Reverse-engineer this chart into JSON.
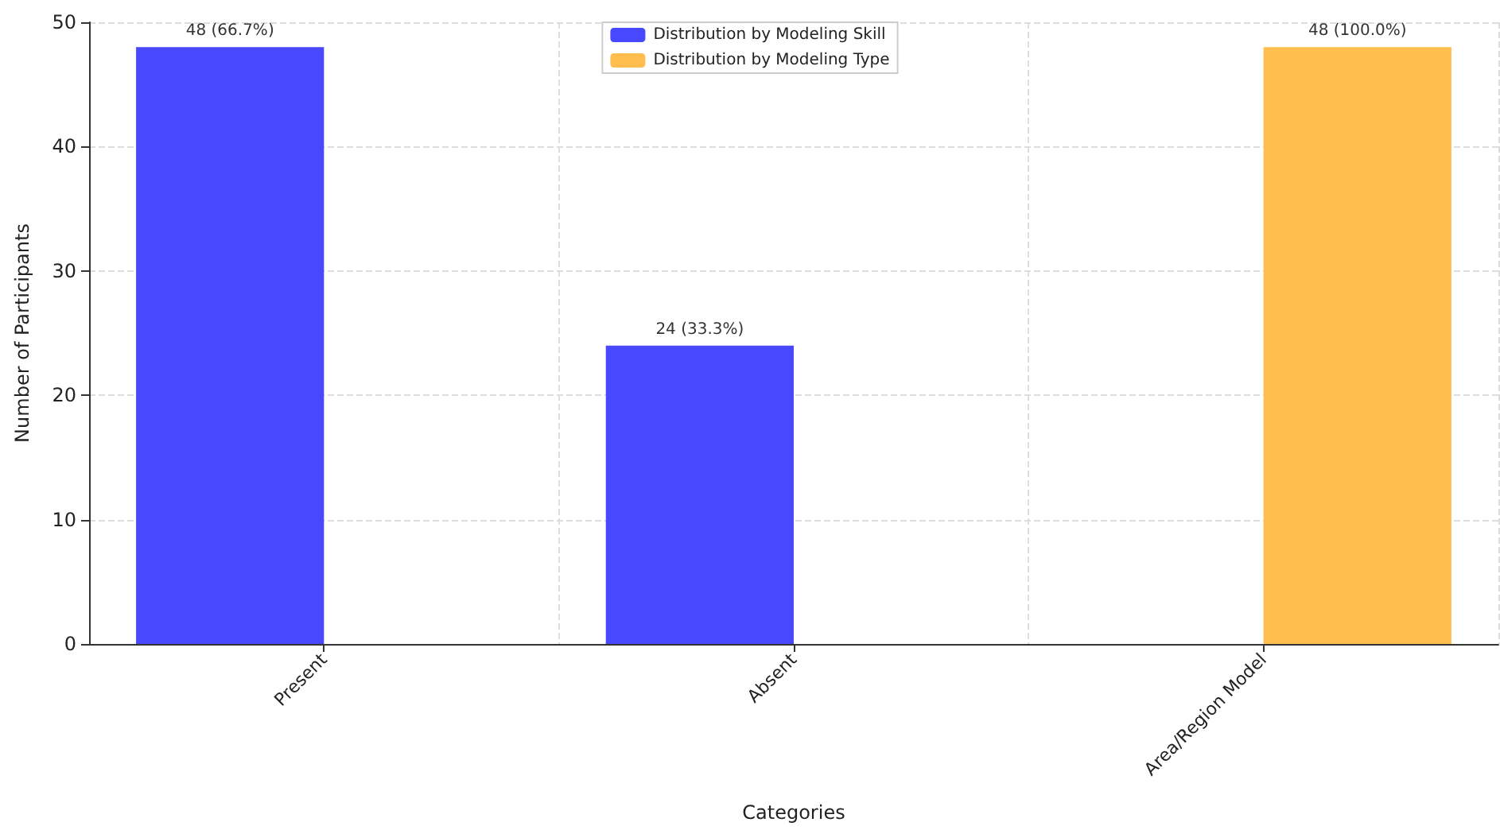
{
  "chart_data": {
    "type": "bar",
    "xlabel": "Categories",
    "ylabel": "Number of Participants",
    "categories": [
      "Present",
      "Absent",
      "Area/Region Model"
    ],
    "series": [
      {
        "name": "Distribution by Modeling Skill",
        "color": "#4848ff",
        "values": [
          48,
          24,
          null
        ],
        "value_labels": [
          "48 (66.7%)",
          "24 (33.3%)",
          null
        ]
      },
      {
        "name": "Distribution by Modeling Type",
        "color": "#ffbe4d",
        "values": [
          null,
          null,
          48
        ],
        "value_labels": [
          null,
          null,
          "48 (100.0%)"
        ]
      }
    ],
    "ylim": [
      0,
      50
    ],
    "yticks": [
      0,
      10,
      20,
      30,
      40,
      50
    ],
    "grid": true,
    "legend": "top"
  }
}
